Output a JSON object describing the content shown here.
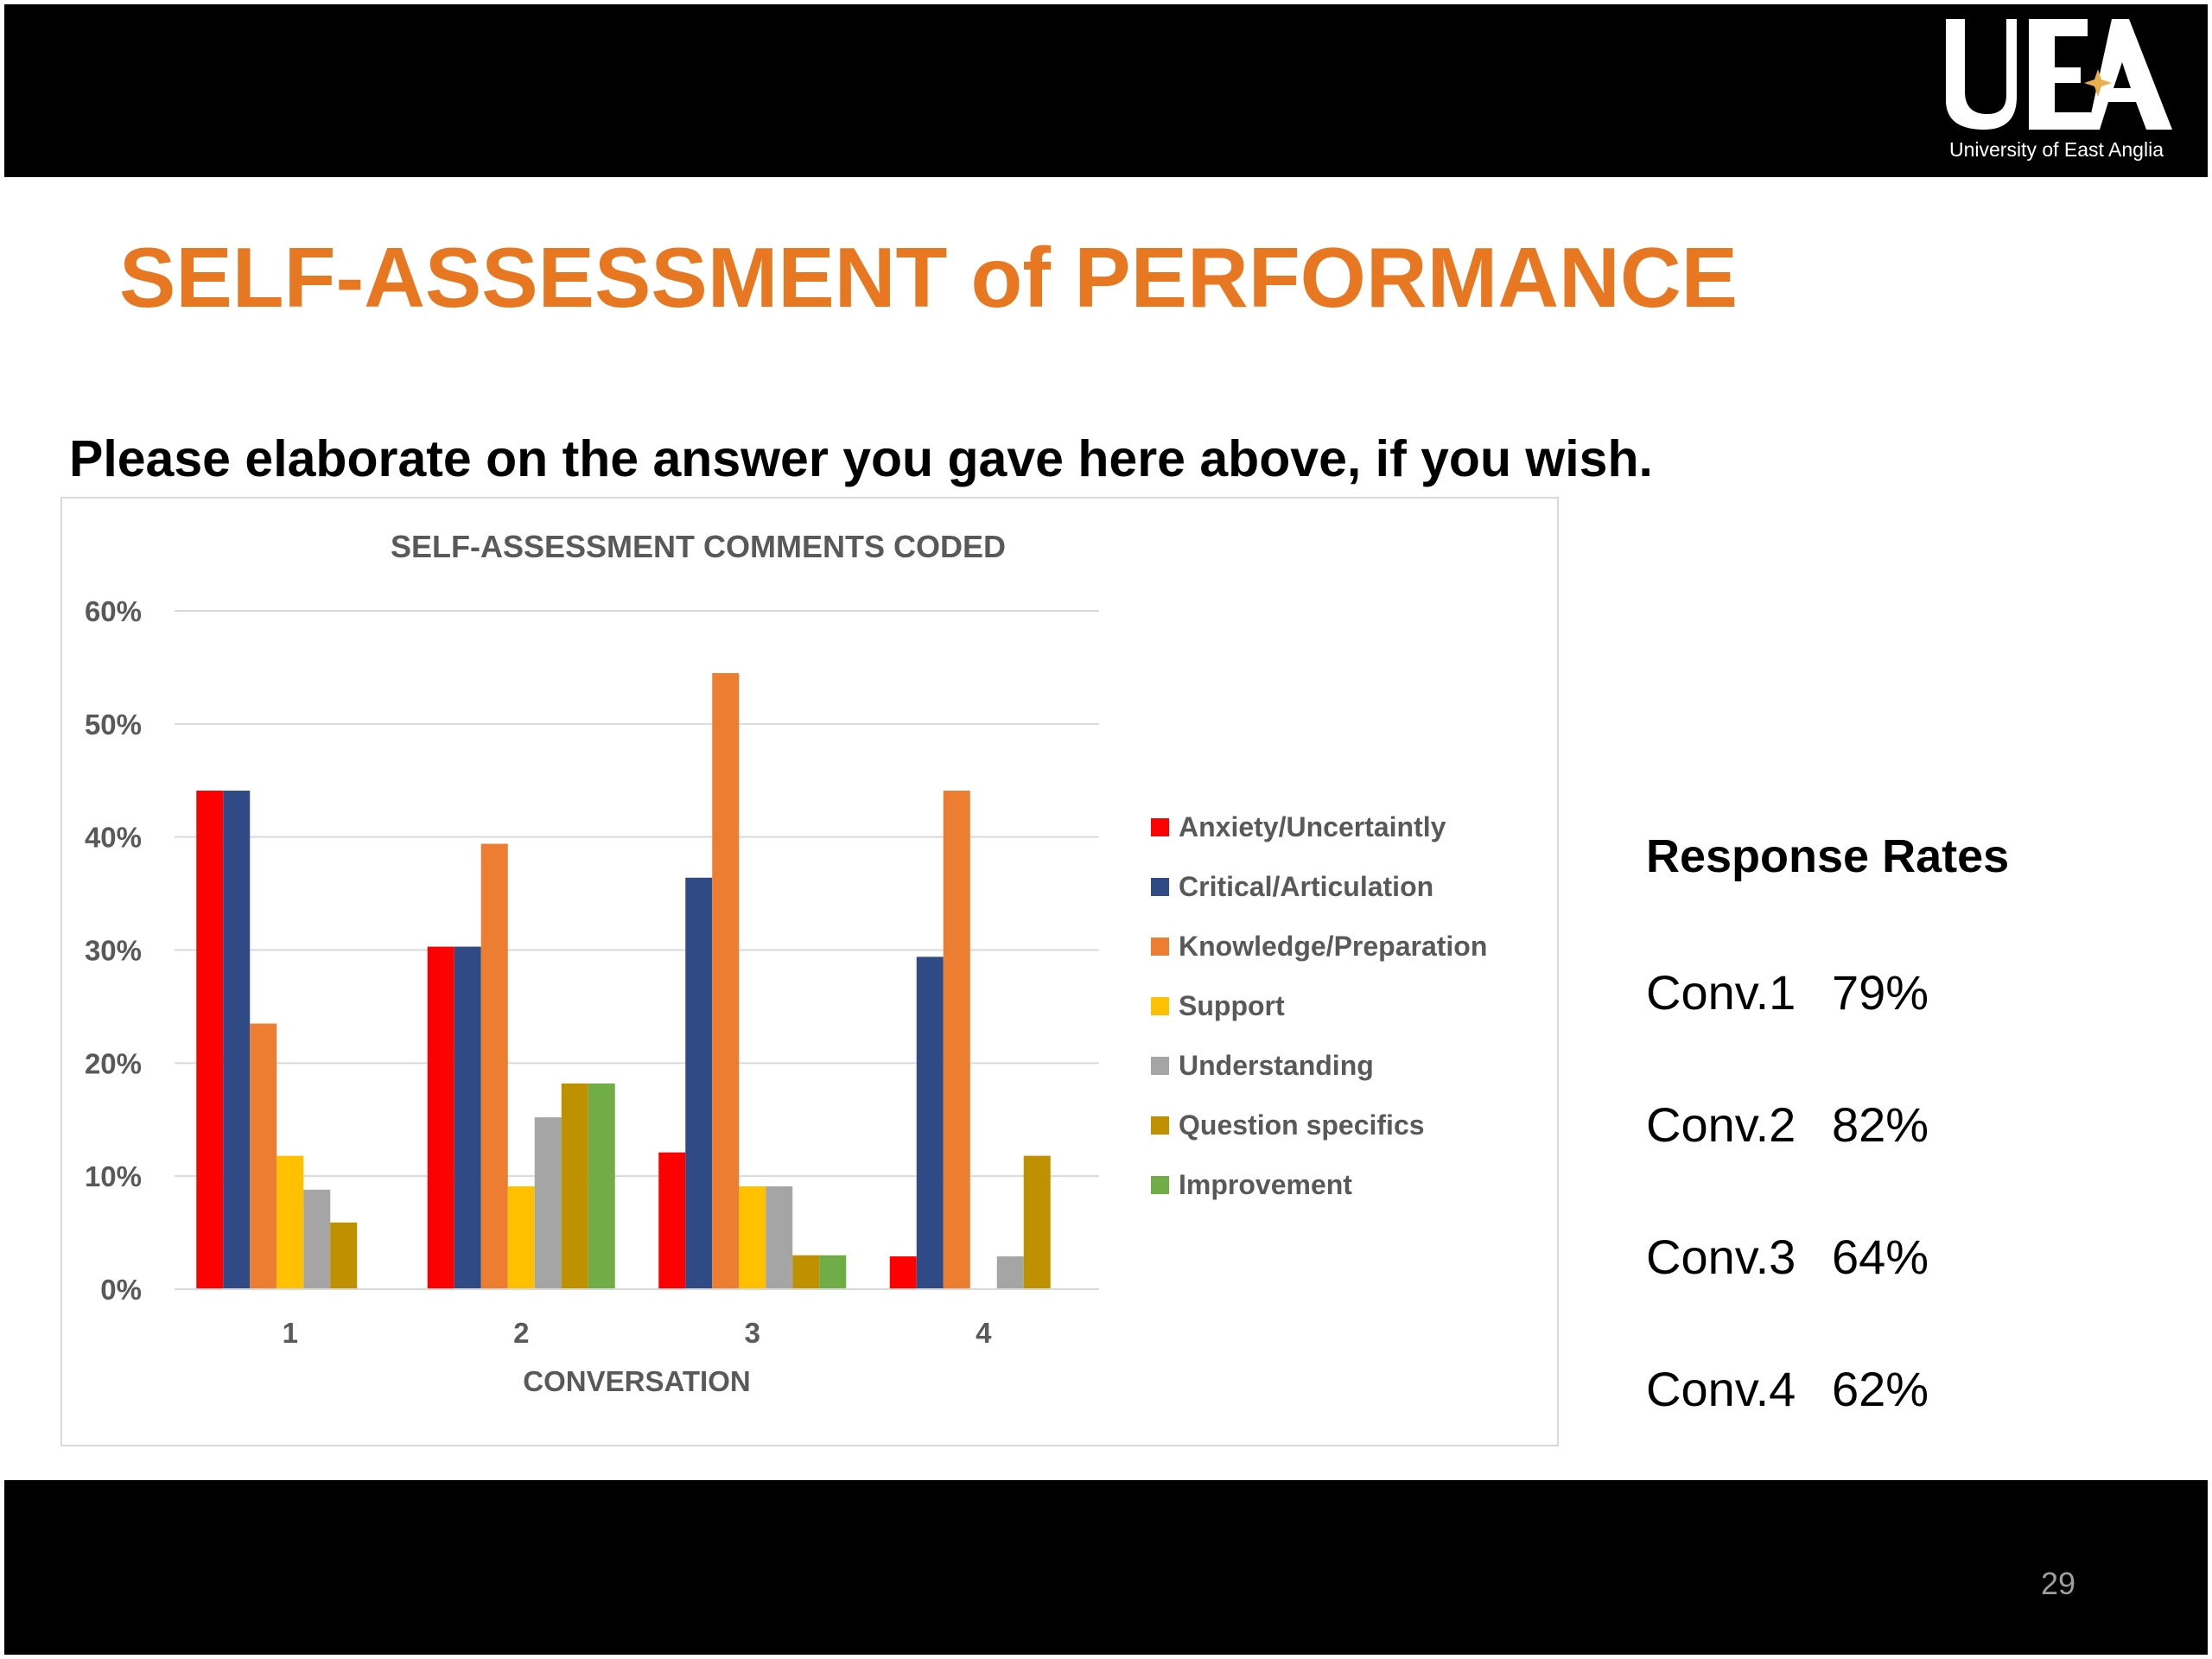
{
  "logo": {
    "mark": "UEA",
    "caption": "University of East Anglia"
  },
  "slide": {
    "title": "SELF-ASSESSMENT of PERFORMANCE",
    "question": "Please elaborate on the answer you gave here above, if you wish.",
    "page_number": "29"
  },
  "response_rates": {
    "title": "Response Rates",
    "items": [
      {
        "label": "Conv.1",
        "value": "79%"
      },
      {
        "label": "Conv.2",
        "value": "82%"
      },
      {
        "label": "Conv.3",
        "value": "64%"
      },
      {
        "label": "Conv.4",
        "value": "62%"
      }
    ]
  },
  "colors": {
    "title_orange": "#e87722",
    "bar_black": "#000000"
  },
  "chart_data": {
    "type": "bar",
    "title": "SELF-ASSESSMENT COMMENTS CODED",
    "xlabel": "CONVERSATION",
    "ylabel": "",
    "categories": [
      "1",
      "2",
      "3",
      "4"
    ],
    "ylim": [
      0,
      60
    ],
    "yticks": [
      0,
      10,
      20,
      30,
      40,
      50,
      60
    ],
    "ytick_labels": [
      "0%",
      "10%",
      "20%",
      "30%",
      "40%",
      "50%",
      "60%"
    ],
    "grid": true,
    "legend_position": "right",
    "series": [
      {
        "name": "Anxiety/Uncertaintly",
        "color": "#ff0000",
        "values": [
          44.1,
          30.3,
          12.1,
          2.9
        ]
      },
      {
        "name": "Critical/Articulation",
        "color": "#2f4a85",
        "values": [
          44.1,
          30.3,
          36.4,
          29.4
        ]
      },
      {
        "name": "Knowledge/Preparation",
        "color": "#ed7d31",
        "values": [
          23.5,
          39.4,
          54.5,
          44.1
        ]
      },
      {
        "name": "Support",
        "color": "#ffc000",
        "values": [
          11.8,
          9.1,
          9.1,
          0
        ]
      },
      {
        "name": "Understanding",
        "color": "#a5a5a5",
        "values": [
          8.8,
          15.2,
          9.1,
          2.9
        ]
      },
      {
        "name": "Question specifics",
        "color": "#bf9000",
        "values": [
          5.9,
          18.2,
          3.0,
          11.8
        ]
      },
      {
        "name": "Improvement",
        "color": "#70ad47",
        "values": [
          0,
          18.2,
          3.0,
          0
        ]
      }
    ]
  }
}
